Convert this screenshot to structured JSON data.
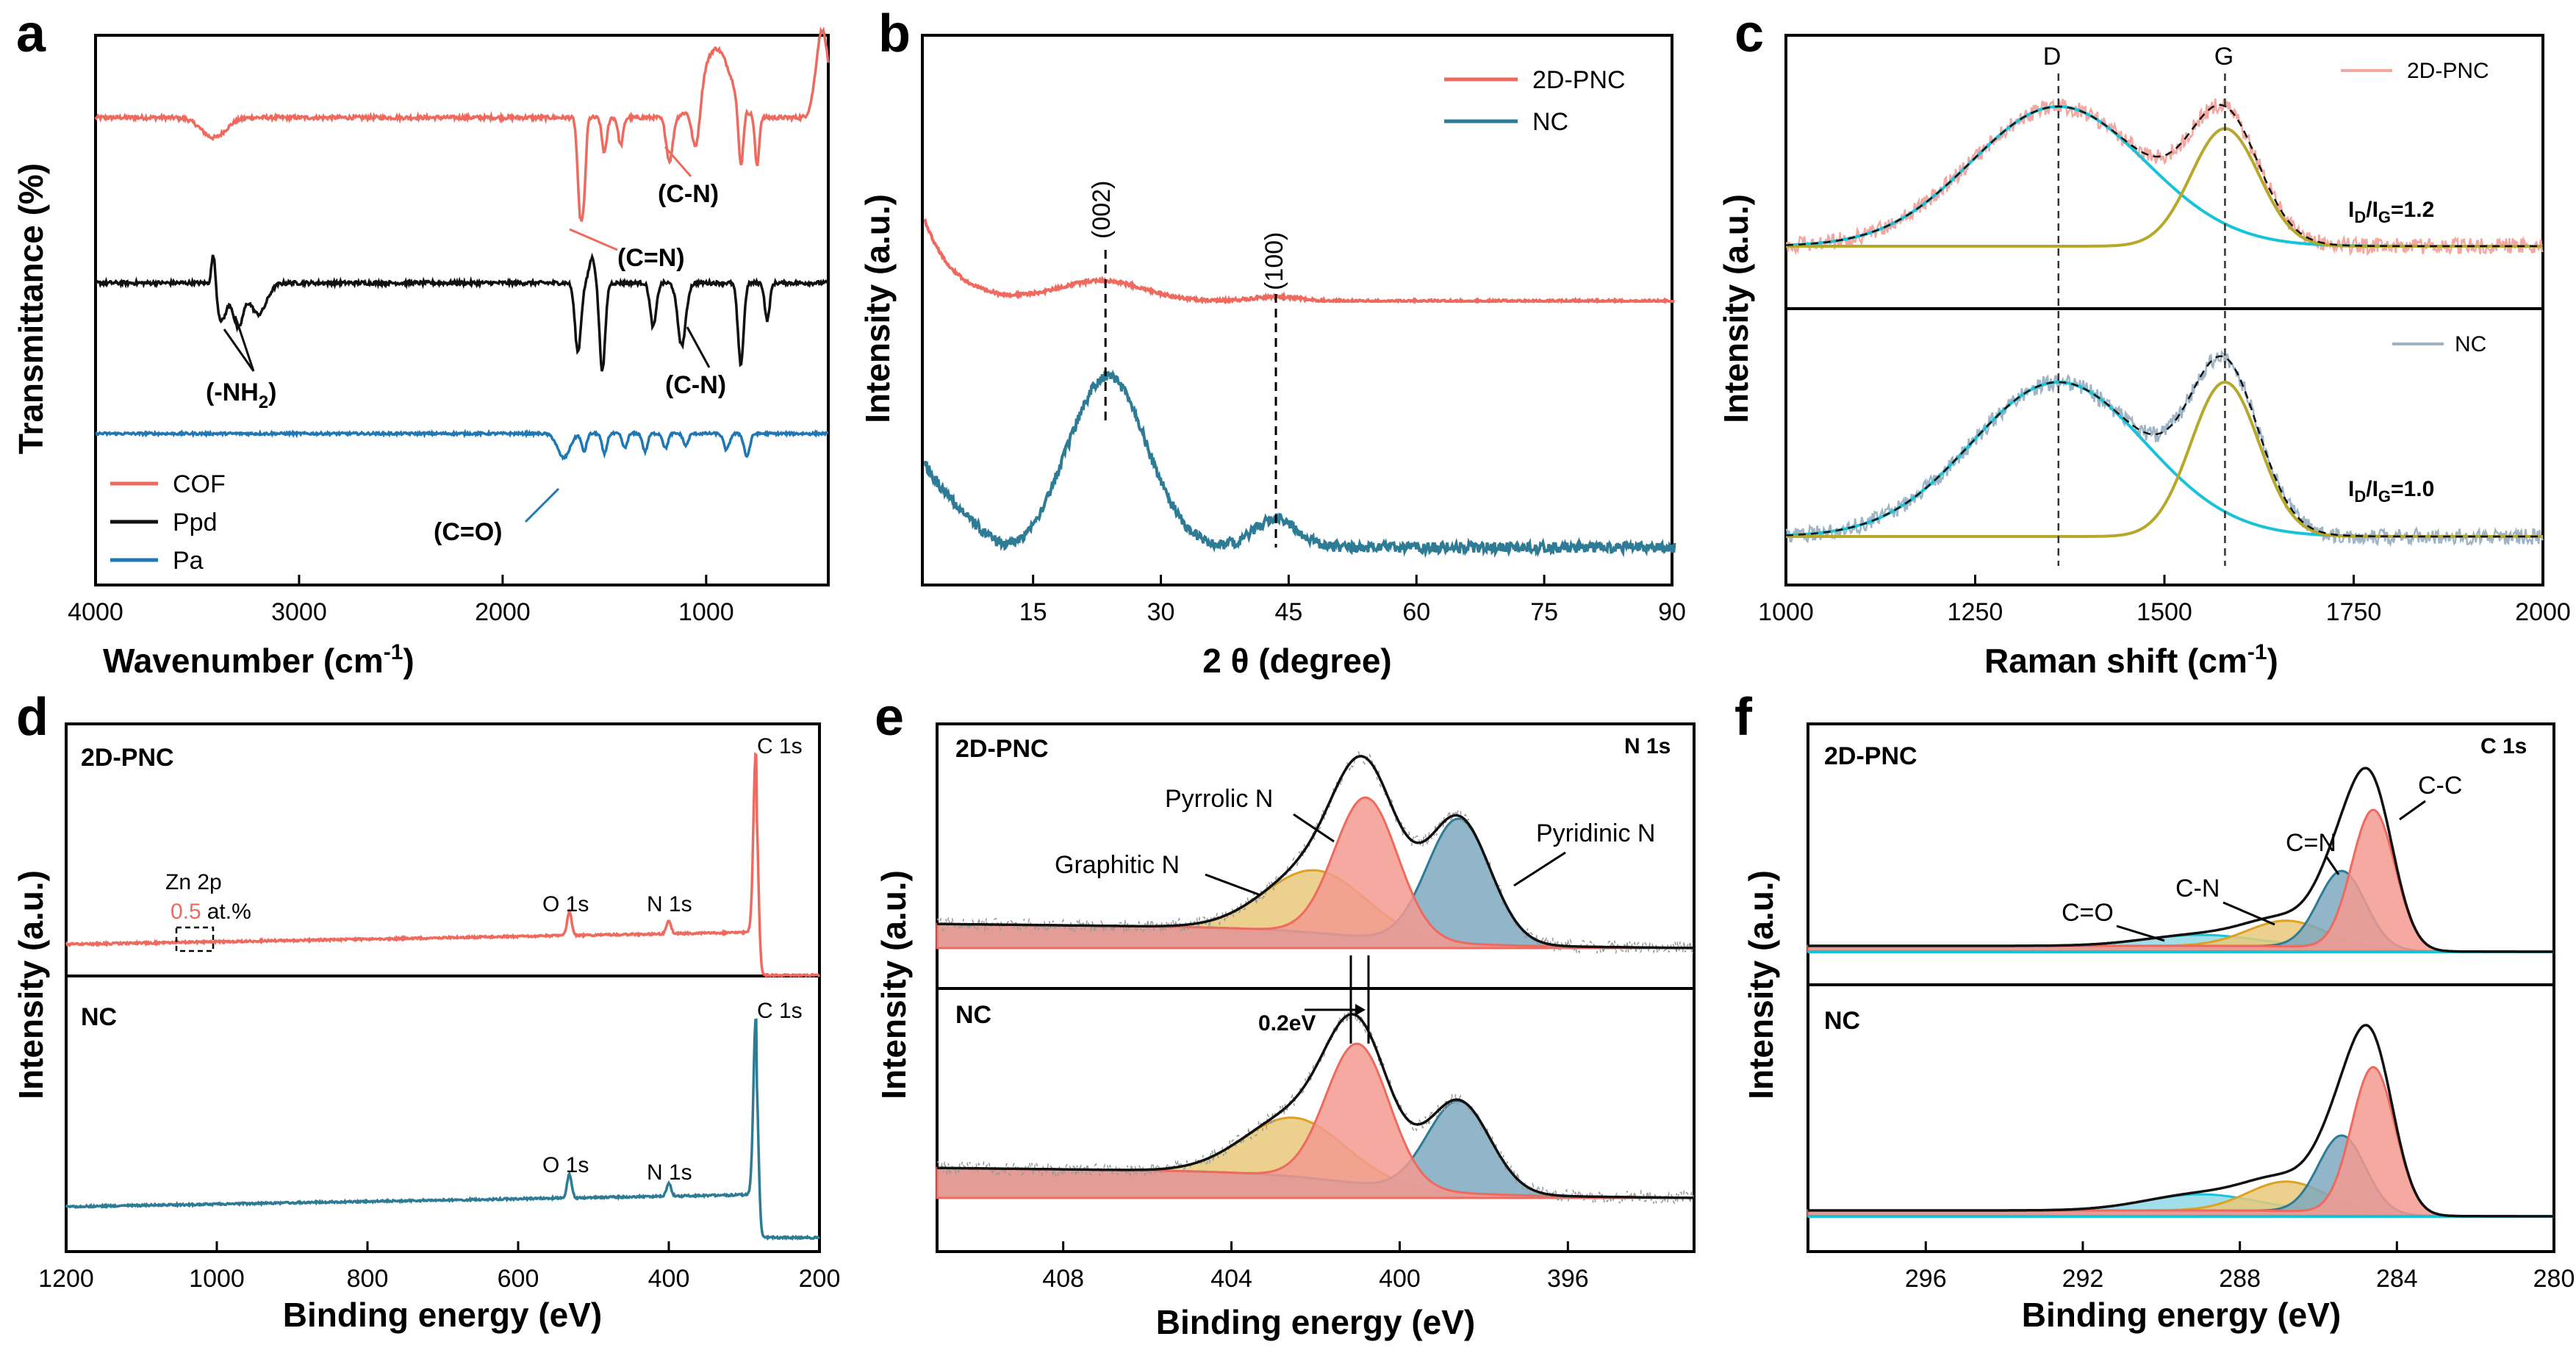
{
  "colors": {
    "red": "#ef6a5e",
    "black": "#111111",
    "blue": "#1f77b4",
    "teal": "#2e7b96",
    "cyan": "#17c3d8",
    "olive": "#b5a82a",
    "salmon_fill": "#f39a90",
    "blue_fill": "#7ea8c0",
    "yellow_fill": "#e8c979",
    "gray_fill": "#b8b8b8"
  },
  "chart_data": [
    {
      "id": "a",
      "type": "line",
      "letter": "a",
      "xlabel": "Wavenumber (cm",
      "xlabel_sup": "-1",
      "xlabel_tail": ")",
      "ylabel": "Transmittance (%)",
      "xlim": [
        4000,
        400
      ],
      "xticks": [
        "4000",
        "3000",
        "2000",
        "1000"
      ],
      "xtick_values": [
        4000,
        3000,
        2000,
        1000
      ],
      "legend": [
        "COF",
        "Ppd",
        "Pa"
      ],
      "series": [
        {
          "name": "COF",
          "color": "#ef6a5e",
          "baseline": 1.0,
          "dips": [
            [
              3420,
              0.16,
              60
            ],
            [
              1620,
              0.72,
              12
            ],
            [
              1600,
              0.5,
              10
            ],
            [
              1500,
              0.28,
              12
            ],
            [
              1420,
              0.22,
              12
            ],
            [
              1180,
              0.35,
              16
            ],
            [
              1050,
              0.42,
              20
            ],
            [
              830,
              0.5,
              12
            ],
            [
              750,
              0.4,
              10
            ]
          ],
          "peaks": [
            [
              950,
              0.55,
              70
            ],
            [
              430,
              0.7,
              30
            ]
          ]
        },
        {
          "name": "Ppd",
          "color": "#111111",
          "baseline": 0.0,
          "dips": [
            [
              3380,
              0.3,
              25
            ],
            [
              3300,
              0.35,
              25
            ],
            [
              3200,
              0.25,
              40
            ],
            [
              1630,
              0.55,
              15
            ],
            [
              1510,
              0.7,
              14
            ],
            [
              1260,
              0.35,
              15
            ],
            [
              1120,
              0.5,
              20
            ],
            [
              830,
              0.65,
              14
            ],
            [
              700,
              0.3,
              12
            ]
          ],
          "peaks": [
            [
              3420,
              0.3,
              10
            ],
            [
              1560,
              0.2,
              15
            ]
          ]
        },
        {
          "name": "Pa",
          "color": "#1f77b4",
          "baseline": -1.2,
          "dips": [
            [
              1700,
              0.3,
              30
            ],
            [
              1600,
              0.22,
              12
            ],
            [
              1500,
              0.25,
              12
            ],
            [
              1400,
              0.18,
              12
            ],
            [
              1300,
              0.22,
              12
            ],
            [
              1200,
              0.18,
              12
            ],
            [
              1100,
              0.15,
              12
            ],
            [
              900,
              0.2,
              14
            ],
            [
              800,
              0.28,
              14
            ]
          ],
          "peaks": []
        }
      ],
      "annotations": [
        "(C-N)",
        "(C=N)",
        "(-NH",
        "2",
        ")",
        "(C-N)",
        "(C=O)"
      ]
    },
    {
      "id": "b",
      "type": "line",
      "letter": "b",
      "xlabel": "2 θ (degree)",
      "ylabel": "Intensity (a.u.)",
      "xlim": [
        2,
        90
      ],
      "xticks": [
        "15",
        "30",
        "45",
        "60",
        "75",
        "90"
      ],
      "xtick_values": [
        15,
        30,
        45,
        60,
        75,
        90
      ],
      "legend": [
        "2D-PNC",
        "NC"
      ],
      "peak_labels": [
        "(002)",
        "(100)"
      ],
      "peak_positions": [
        23.5,
        43.5
      ],
      "series": [
        {
          "name": "2D-PNC",
          "color": "#ef6a5e"
        },
        {
          "name": "NC",
          "color": "#2e7b96"
        }
      ]
    },
    {
      "id": "c",
      "type": "line",
      "letter": "c",
      "xlabel": "Raman shift (cm",
      "xlabel_sup": "-1",
      "xlabel_tail": ")",
      "ylabel": "Intensity (a.u.)",
      "xlim": [
        1000,
        2000
      ],
      "xticks": [
        "1000",
        "1250",
        "1500",
        "1750",
        "2000"
      ],
      "xtick_values": [
        1000,
        1250,
        1500,
        1750,
        2000
      ],
      "band_labels": [
        "D",
        "G"
      ],
      "band_positions": [
        1360,
        1580
      ],
      "legend_top": "2D-PNC",
      "legend_bottom": "NC",
      "ratio_top": {
        "pre": "I",
        "sub1": "D",
        "mid": "/I",
        "sub2": "G",
        "post": "=1.2"
      },
      "ratio_bottom": {
        "pre": "I",
        "sub1": "D",
        "mid": "/I",
        "sub2": "G",
        "post": "=1.0"
      }
    },
    {
      "id": "d",
      "type": "line",
      "letter": "d",
      "xlabel": "Binding energy (eV)",
      "ylabel": "Intensity (a.u.)",
      "xlim": [
        1200,
        200
      ],
      "xticks": [
        "1200",
        "1000",
        "800",
        "600",
        "400",
        "200"
      ],
      "xtick_values": [
        1200,
        1000,
        800,
        600,
        400,
        200
      ],
      "sample_top": "2D-PNC",
      "sample_bottom": "NC",
      "labels": [
        "C 1s",
        "O 1s",
        "N 1s",
        "Zn 2p",
        "0.5",
        "at.%"
      ]
    },
    {
      "id": "e",
      "type": "line",
      "letter": "e",
      "xlabel": "Binding energy (eV)",
      "ylabel": "Intensity (a.u.)",
      "xlim": [
        411,
        393
      ],
      "xticks": [
        "408",
        "404",
        "400",
        "396"
      ],
      "xtick_values": [
        408,
        404,
        400,
        396
      ],
      "sample_top": "2D-PNC",
      "sample_bottom": "NC",
      "region": "N 1s",
      "components": [
        "Pyridinic N",
        "Pyrrolic N",
        "Graphitic N"
      ],
      "component_positions": [
        398.5,
        400.6,
        402.0
      ],
      "shift_label": "0.2eV"
    },
    {
      "id": "f",
      "type": "line",
      "letter": "f",
      "xlabel": "Binding energy (eV)",
      "ylabel": "Intensity (a.u.)",
      "xlim": [
        299,
        280
      ],
      "xticks": [
        "296",
        "292",
        "288",
        "284",
        "280"
      ],
      "xtick_values": [
        296,
        292,
        288,
        284,
        280
      ],
      "sample_top": "2D-PNC",
      "sample_bottom": "NC",
      "region": "C 1s",
      "components": [
        "C-C",
        "C=N",
        "C-N",
        "C=O"
      ],
      "component_positions": [
        284.6,
        285.4,
        286.8,
        289.0
      ]
    }
  ]
}
